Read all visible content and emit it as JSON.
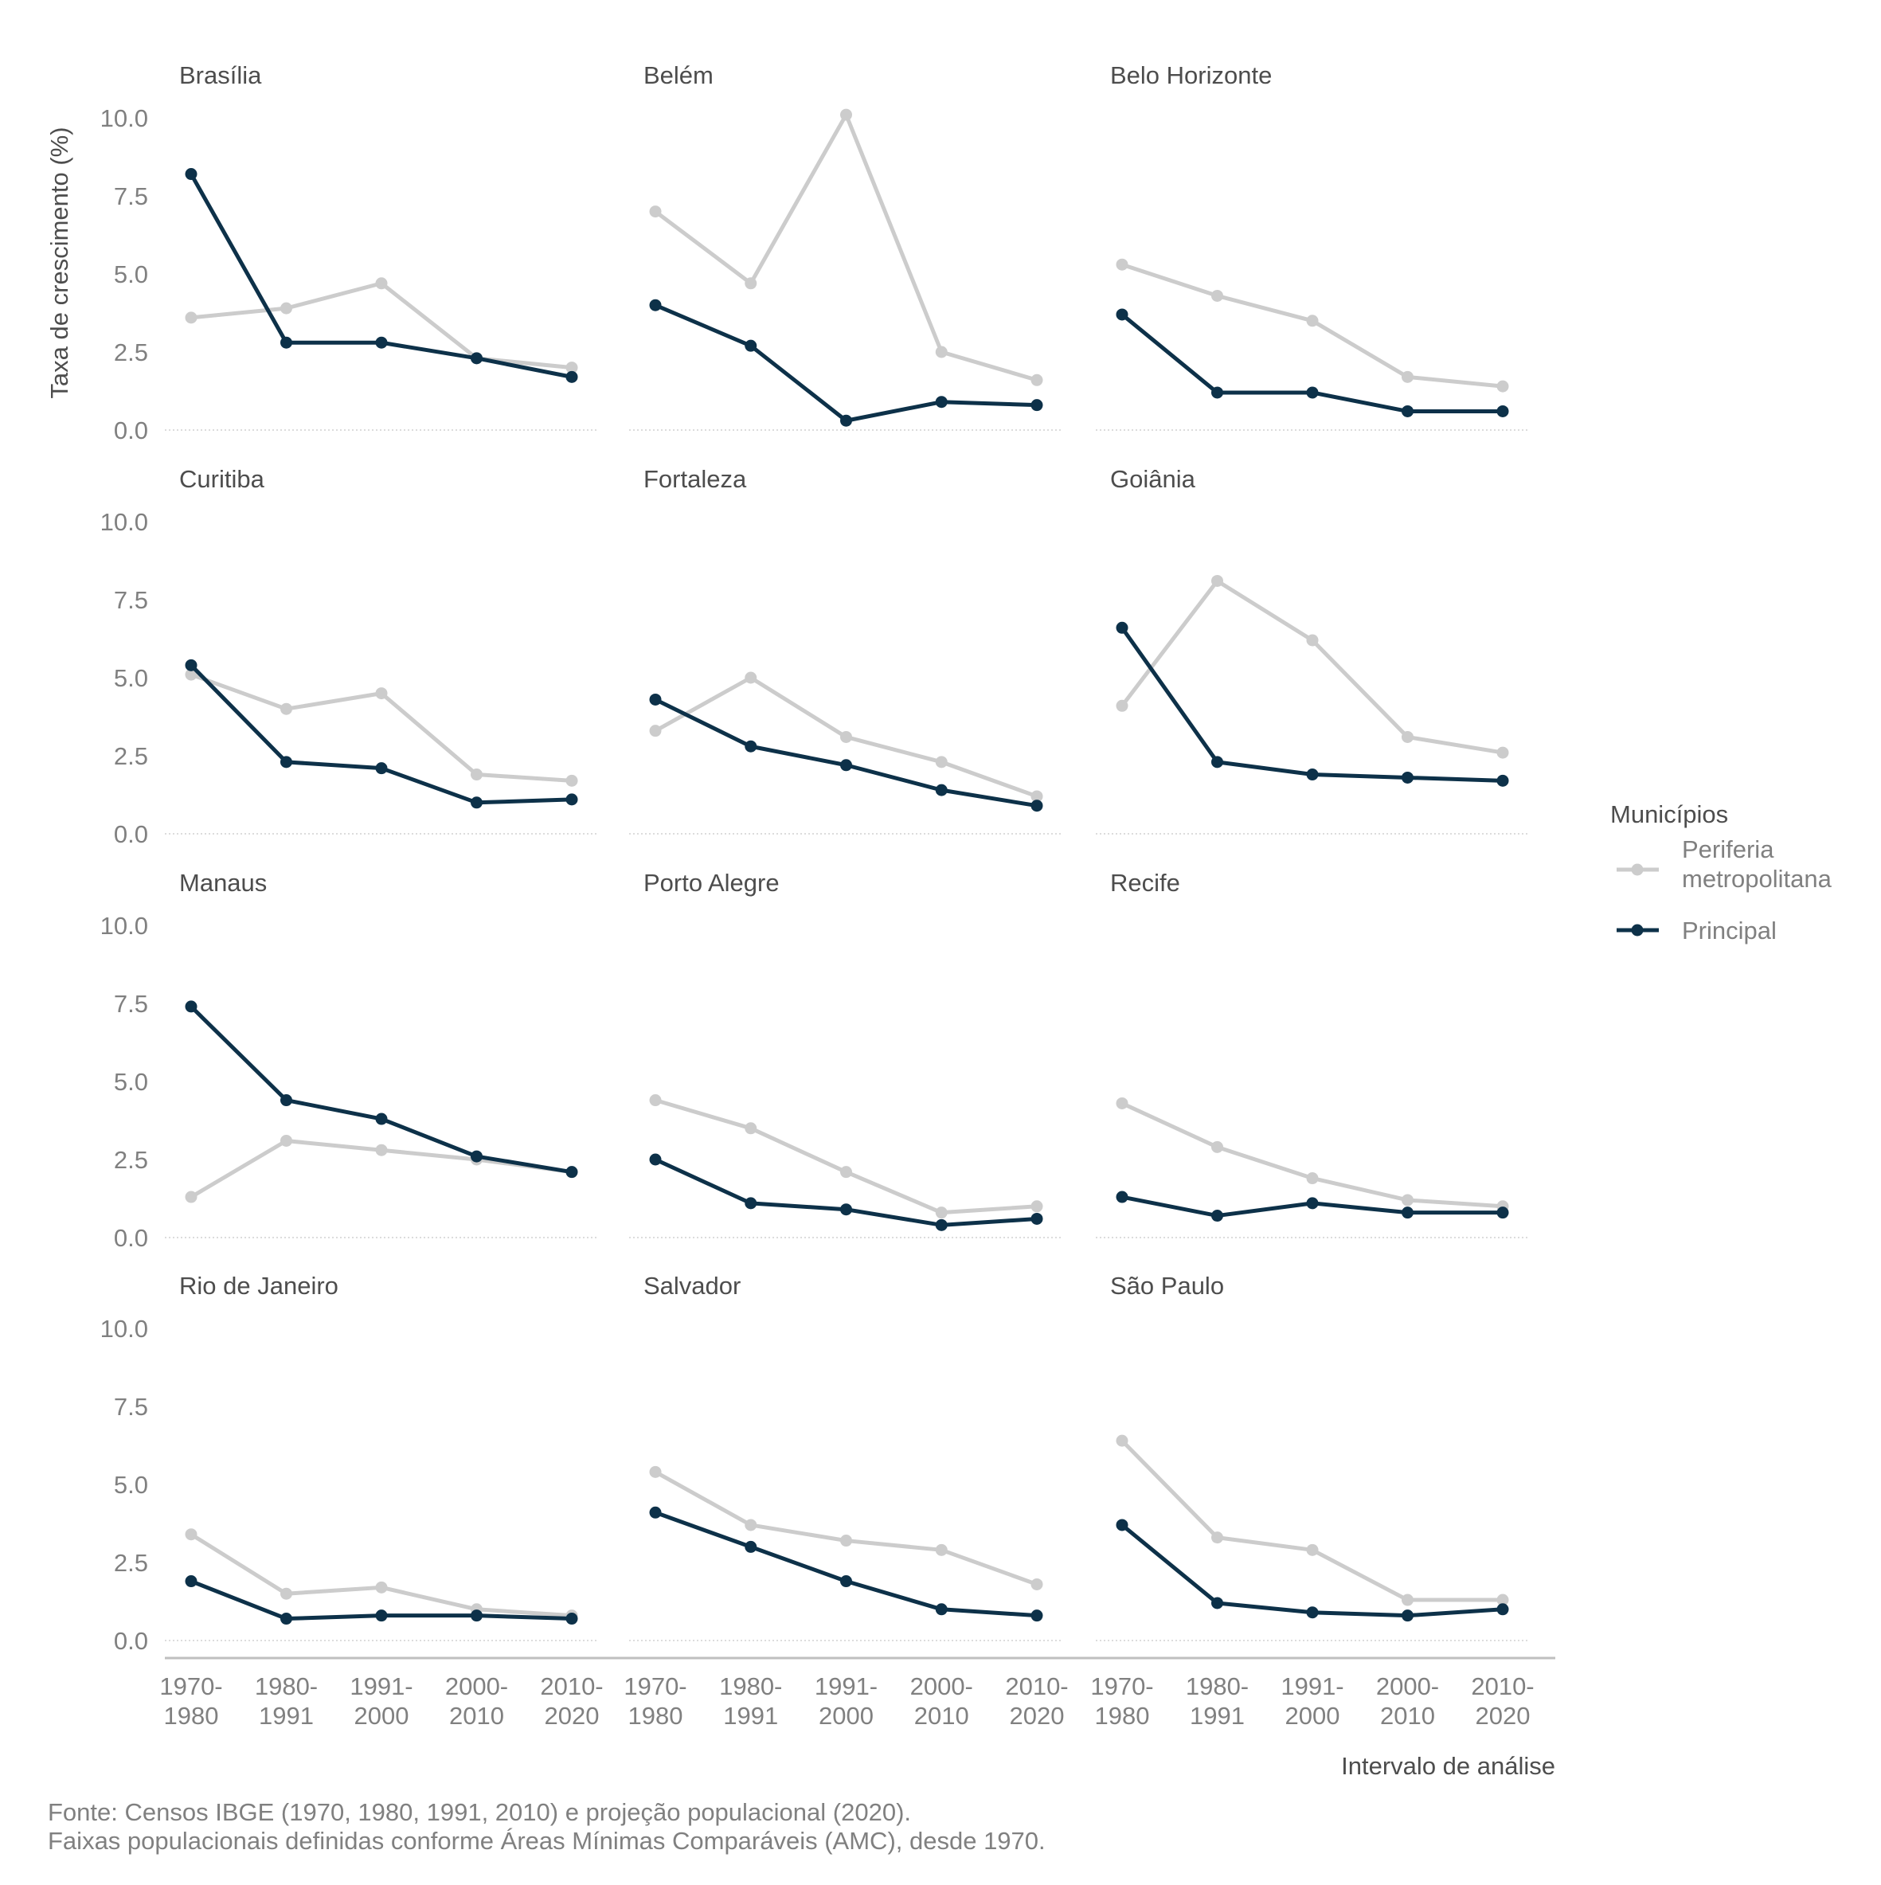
{
  "chart_data": {
    "type": "line",
    "ylabel": "Taxa de crescimento (%)",
    "xlabel": "Intervalo de análise",
    "ylim": [
      0,
      10
    ],
    "y_ticks": [
      "0.0",
      "2.5",
      "5.0",
      "7.5",
      "10.0"
    ],
    "categories": [
      [
        "1970-",
        "1980"
      ],
      [
        "1980-",
        "1991"
      ],
      [
        "1991-",
        "2000"
      ],
      [
        "2000-",
        "2010"
      ],
      [
        "2010-",
        "2020"
      ]
    ],
    "legend": {
      "title": "Municípios",
      "placement": "right",
      "items": [
        {
          "label_lines": [
            "Periferia",
            "metropolitana"
          ],
          "color": "#cccccc"
        },
        {
          "label_lines": [
            "Principal"
          ],
          "color": "#0d3149"
        }
      ]
    },
    "grid": "horizontal baseline at 0 only",
    "colors": {
      "periferia": "#cccccc",
      "principal": "#0d3149"
    },
    "facets": [
      {
        "title": "Brasília",
        "series": [
          {
            "name": "Periferia metropolitana",
            "values": [
              3.6,
              3.9,
              4.7,
              2.3,
              2.0
            ]
          },
          {
            "name": "Principal",
            "values": [
              8.2,
              2.8,
              2.8,
              2.3,
              1.7
            ]
          }
        ]
      },
      {
        "title": "Belém",
        "series": [
          {
            "name": "Periferia metropolitana",
            "values": [
              7.0,
              4.7,
              10.1,
              2.5,
              1.6
            ]
          },
          {
            "name": "Principal",
            "values": [
              4.0,
              2.7,
              0.3,
              0.9,
              0.8
            ]
          }
        ]
      },
      {
        "title": "Belo Horizonte",
        "series": [
          {
            "name": "Periferia metropolitana",
            "values": [
              5.3,
              4.3,
              3.5,
              1.7,
              1.4
            ]
          },
          {
            "name": "Principal",
            "values": [
              3.7,
              1.2,
              1.2,
              0.6,
              0.6
            ]
          }
        ]
      },
      {
        "title": "Curitiba",
        "series": [
          {
            "name": "Periferia metropolitana",
            "values": [
              5.1,
              4.0,
              4.5,
              1.9,
              1.7
            ]
          },
          {
            "name": "Principal",
            "values": [
              5.4,
              2.3,
              2.1,
              1.0,
              1.1
            ]
          }
        ]
      },
      {
        "title": "Fortaleza",
        "series": [
          {
            "name": "Periferia metropolitana",
            "values": [
              3.3,
              5.0,
              3.1,
              2.3,
              1.2
            ]
          },
          {
            "name": "Principal",
            "values": [
              4.3,
              2.8,
              2.2,
              1.4,
              0.9
            ]
          }
        ]
      },
      {
        "title": "Goiânia",
        "series": [
          {
            "name": "Periferia metropolitana",
            "values": [
              4.1,
              8.1,
              6.2,
              3.1,
              2.6
            ]
          },
          {
            "name": "Principal",
            "values": [
              6.6,
              2.3,
              1.9,
              1.8,
              1.7
            ]
          }
        ]
      },
      {
        "title": "Manaus",
        "series": [
          {
            "name": "Periferia metropolitana",
            "values": [
              1.3,
              3.1,
              2.8,
              2.5,
              2.1
            ]
          },
          {
            "name": "Principal",
            "values": [
              7.4,
              4.4,
              3.8,
              2.6,
              2.1
            ]
          }
        ]
      },
      {
        "title": "Porto Alegre",
        "series": [
          {
            "name": "Periferia metropolitana",
            "values": [
              4.4,
              3.5,
              2.1,
              0.8,
              1.0
            ]
          },
          {
            "name": "Principal",
            "values": [
              2.5,
              1.1,
              0.9,
              0.4,
              0.6
            ]
          }
        ]
      },
      {
        "title": "Recife",
        "series": [
          {
            "name": "Periferia metropolitana",
            "values": [
              4.3,
              2.9,
              1.9,
              1.2,
              1.0
            ]
          },
          {
            "name": "Principal",
            "values": [
              1.3,
              0.7,
              1.1,
              0.8,
              0.8
            ]
          }
        ]
      },
      {
        "title": "Rio de Janeiro",
        "series": [
          {
            "name": "Periferia metropolitana",
            "values": [
              3.4,
              1.5,
              1.7,
              1.0,
              0.8
            ]
          },
          {
            "name": "Principal",
            "values": [
              1.9,
              0.7,
              0.8,
              0.8,
              0.7
            ]
          }
        ]
      },
      {
        "title": "Salvador",
        "series": [
          {
            "name": "Periferia metropolitana",
            "values": [
              5.4,
              3.7,
              3.2,
              2.9,
              1.8
            ]
          },
          {
            "name": "Principal",
            "values": [
              4.1,
              3.0,
              1.9,
              1.0,
              0.8
            ]
          }
        ]
      },
      {
        "title": "São Paulo",
        "series": [
          {
            "name": "Periferia metropolitana",
            "values": [
              6.4,
              3.3,
              2.9,
              1.3,
              1.3
            ]
          },
          {
            "name": "Principal",
            "values": [
              3.7,
              1.2,
              0.9,
              0.8,
              1.0
            ]
          }
        ]
      }
    ],
    "caption": [
      "Fonte: Censos IBGE (1970, 1980, 1991, 2010) e projeção populacional (2020).",
      "Faixas populacionais definidas conforme Áreas Mínimas Comparáveis (AMC), desde 1970."
    ]
  }
}
